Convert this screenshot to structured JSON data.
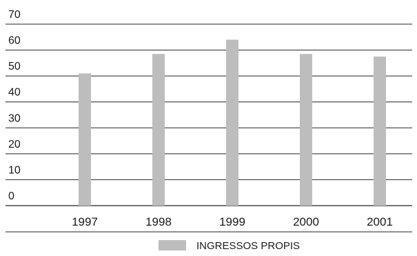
{
  "chart_data": {
    "type": "bar",
    "categories": [
      "1997",
      "1998",
      "1999",
      "2000",
      "2001"
    ],
    "series": [
      {
        "name": "INGRESSOS PROPIS",
        "values": [
          51,
          58.5,
          64,
          58.5,
          57.5
        ],
        "color": "#bdbdbd"
      }
    ],
    "yticks": [
      "0",
      "10",
      "20",
      "30",
      "40",
      "50",
      "60",
      "70"
    ],
    "ylim": [
      0,
      70
    ],
    "grid": true,
    "legend_position": "bottom-center",
    "title": "",
    "xlabel": "",
    "ylabel": ""
  }
}
